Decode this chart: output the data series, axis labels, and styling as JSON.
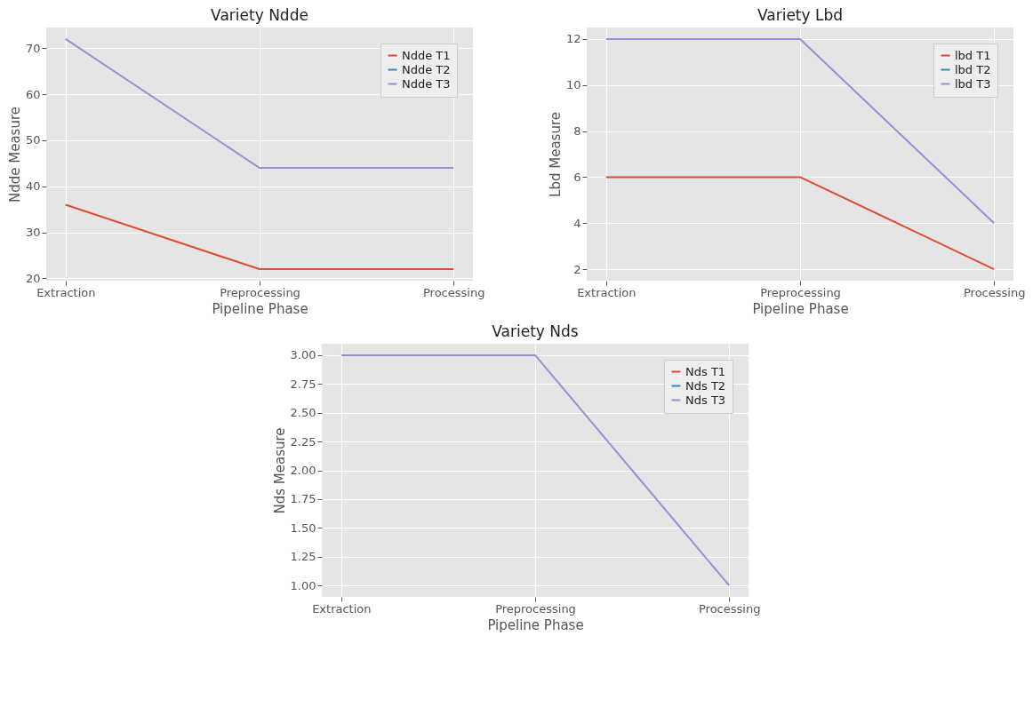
{
  "chart_data": [
    {
      "type": "line",
      "title": "Variety Ndde",
      "xlabel": "Pipeline Phase",
      "ylabel": "Ndde Measure",
      "categories": [
        "Extraction",
        "Preprocessing",
        "Processing"
      ],
      "series": [
        {
          "name": "Ndde T1",
          "color": "#e24a33",
          "values": [
            36,
            22,
            22
          ]
        },
        {
          "name": "Ndde T2",
          "color": "#348abd",
          "values": [
            null,
            null,
            null
          ]
        },
        {
          "name": "Ndde T3",
          "color": "#988ed5",
          "values": [
            72,
            44,
            44
          ]
        }
      ],
      "ylim": [
        19.5,
        74.5
      ],
      "yticks": [
        20,
        30,
        40,
        50,
        60,
        70
      ],
      "grid": true,
      "legend": "top right"
    },
    {
      "type": "line",
      "title": "Variety Lbd",
      "xlabel": "Pipeline Phase",
      "ylabel": "Lbd Measure",
      "categories": [
        "Extraction",
        "Preprocessing",
        "Processing"
      ],
      "series": [
        {
          "name": "lbd T1",
          "color": "#e24a33",
          "values": [
            6,
            6,
            2
          ]
        },
        {
          "name": "lbd T2",
          "color": "#348abd",
          "values": [
            null,
            null,
            null
          ]
        },
        {
          "name": "lbd T3",
          "color": "#988ed5",
          "values": [
            12,
            12,
            4
          ]
        }
      ],
      "ylim": [
        1.5,
        12.5
      ],
      "yticks": [
        2,
        4,
        6,
        8,
        10,
        12
      ],
      "grid": true,
      "legend": "top right"
    },
    {
      "type": "line",
      "title": "Variety Nds",
      "xlabel": "Pipeline Phase",
      "ylabel": "Nds Measure",
      "categories": [
        "Extraction",
        "Preprocessing",
        "Processing"
      ],
      "series": [
        {
          "name": "Nds T1",
          "color": "#e24a33",
          "values": [
            null,
            null,
            null
          ]
        },
        {
          "name": "Nds T2",
          "color": "#348abd",
          "values": [
            null,
            null,
            null
          ]
        },
        {
          "name": "Nds T3",
          "color": "#988ed5",
          "values": [
            3,
            3,
            1
          ]
        }
      ],
      "ylim": [
        0.9,
        3.1
      ],
      "yticks": [
        {
          "value": 1,
          "label": "1.00"
        },
        {
          "value": 1.25,
          "label": "1.25"
        },
        {
          "value": 1.5,
          "label": "1.50"
        },
        {
          "value": 1.75,
          "label": "1.75"
        },
        {
          "value": 2,
          "label": "2.00"
        },
        {
          "value": 2.25,
          "label": "2.25"
        },
        {
          "value": 2.5,
          "label": "2.50"
        },
        {
          "value": 2.75,
          "label": "2.75"
        },
        {
          "value": 3,
          "label": "3.00"
        }
      ],
      "grid": true,
      "legend": "top right"
    }
  ]
}
